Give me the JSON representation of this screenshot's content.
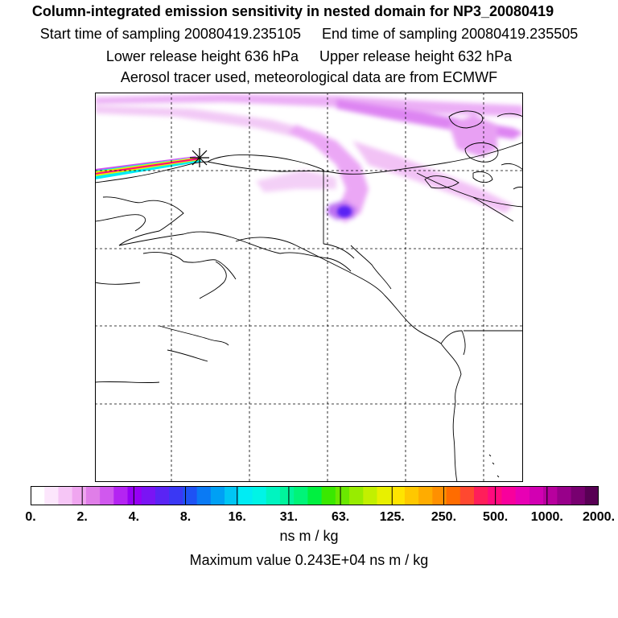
{
  "titles": {
    "main": "Column-integrated emission sensitivity in nested domain for NP3_20080419",
    "start_time": "Start time of sampling 20080419.235105",
    "end_time": "End time of sampling 20080419.235505",
    "lower_height": "Lower release height  636 hPa",
    "upper_height": "Upper release height  632 hPa",
    "tracer_info": "Aerosol tracer used, meteorological data are from ECMWF"
  },
  "colorbar": {
    "labels": [
      "0.",
      "2.",
      "4.",
      "8.",
      "16.",
      "31.",
      "63.",
      "125.",
      "250.",
      "500.",
      "1000.",
      "2000."
    ],
    "colors": [
      "#ffffff",
      "#fce6fc",
      "#f6c6f6",
      "#f0a6f0",
      "#e07ee8",
      "#d058ee",
      "#b424f2",
      "#9600f4",
      "#7a14f4",
      "#5a24f4",
      "#3a38f4",
      "#1e52f4",
      "#0a7af4",
      "#00a0f4",
      "#00c6f4",
      "#00ecf4",
      "#00f4e6",
      "#00f4c0",
      "#00f49c",
      "#00f478",
      "#00f040",
      "#3ae800",
      "#6ae800",
      "#98ec00",
      "#c2f000",
      "#e8f000",
      "#ffe400",
      "#ffc800",
      "#ffac00",
      "#ff9000",
      "#ff6c00",
      "#ff4830",
      "#ff1e5a",
      "#ff0a7e",
      "#f8009c",
      "#e800b4",
      "#d200b2",
      "#b8009e",
      "#98008a",
      "#780070",
      "#580054"
    ],
    "units": "ns m / kg"
  },
  "max_value": "Maximum value  0.243E+04 ns m / kg",
  "map": {
    "release_marker": "star-marker",
    "grid_style": "dashed"
  }
}
